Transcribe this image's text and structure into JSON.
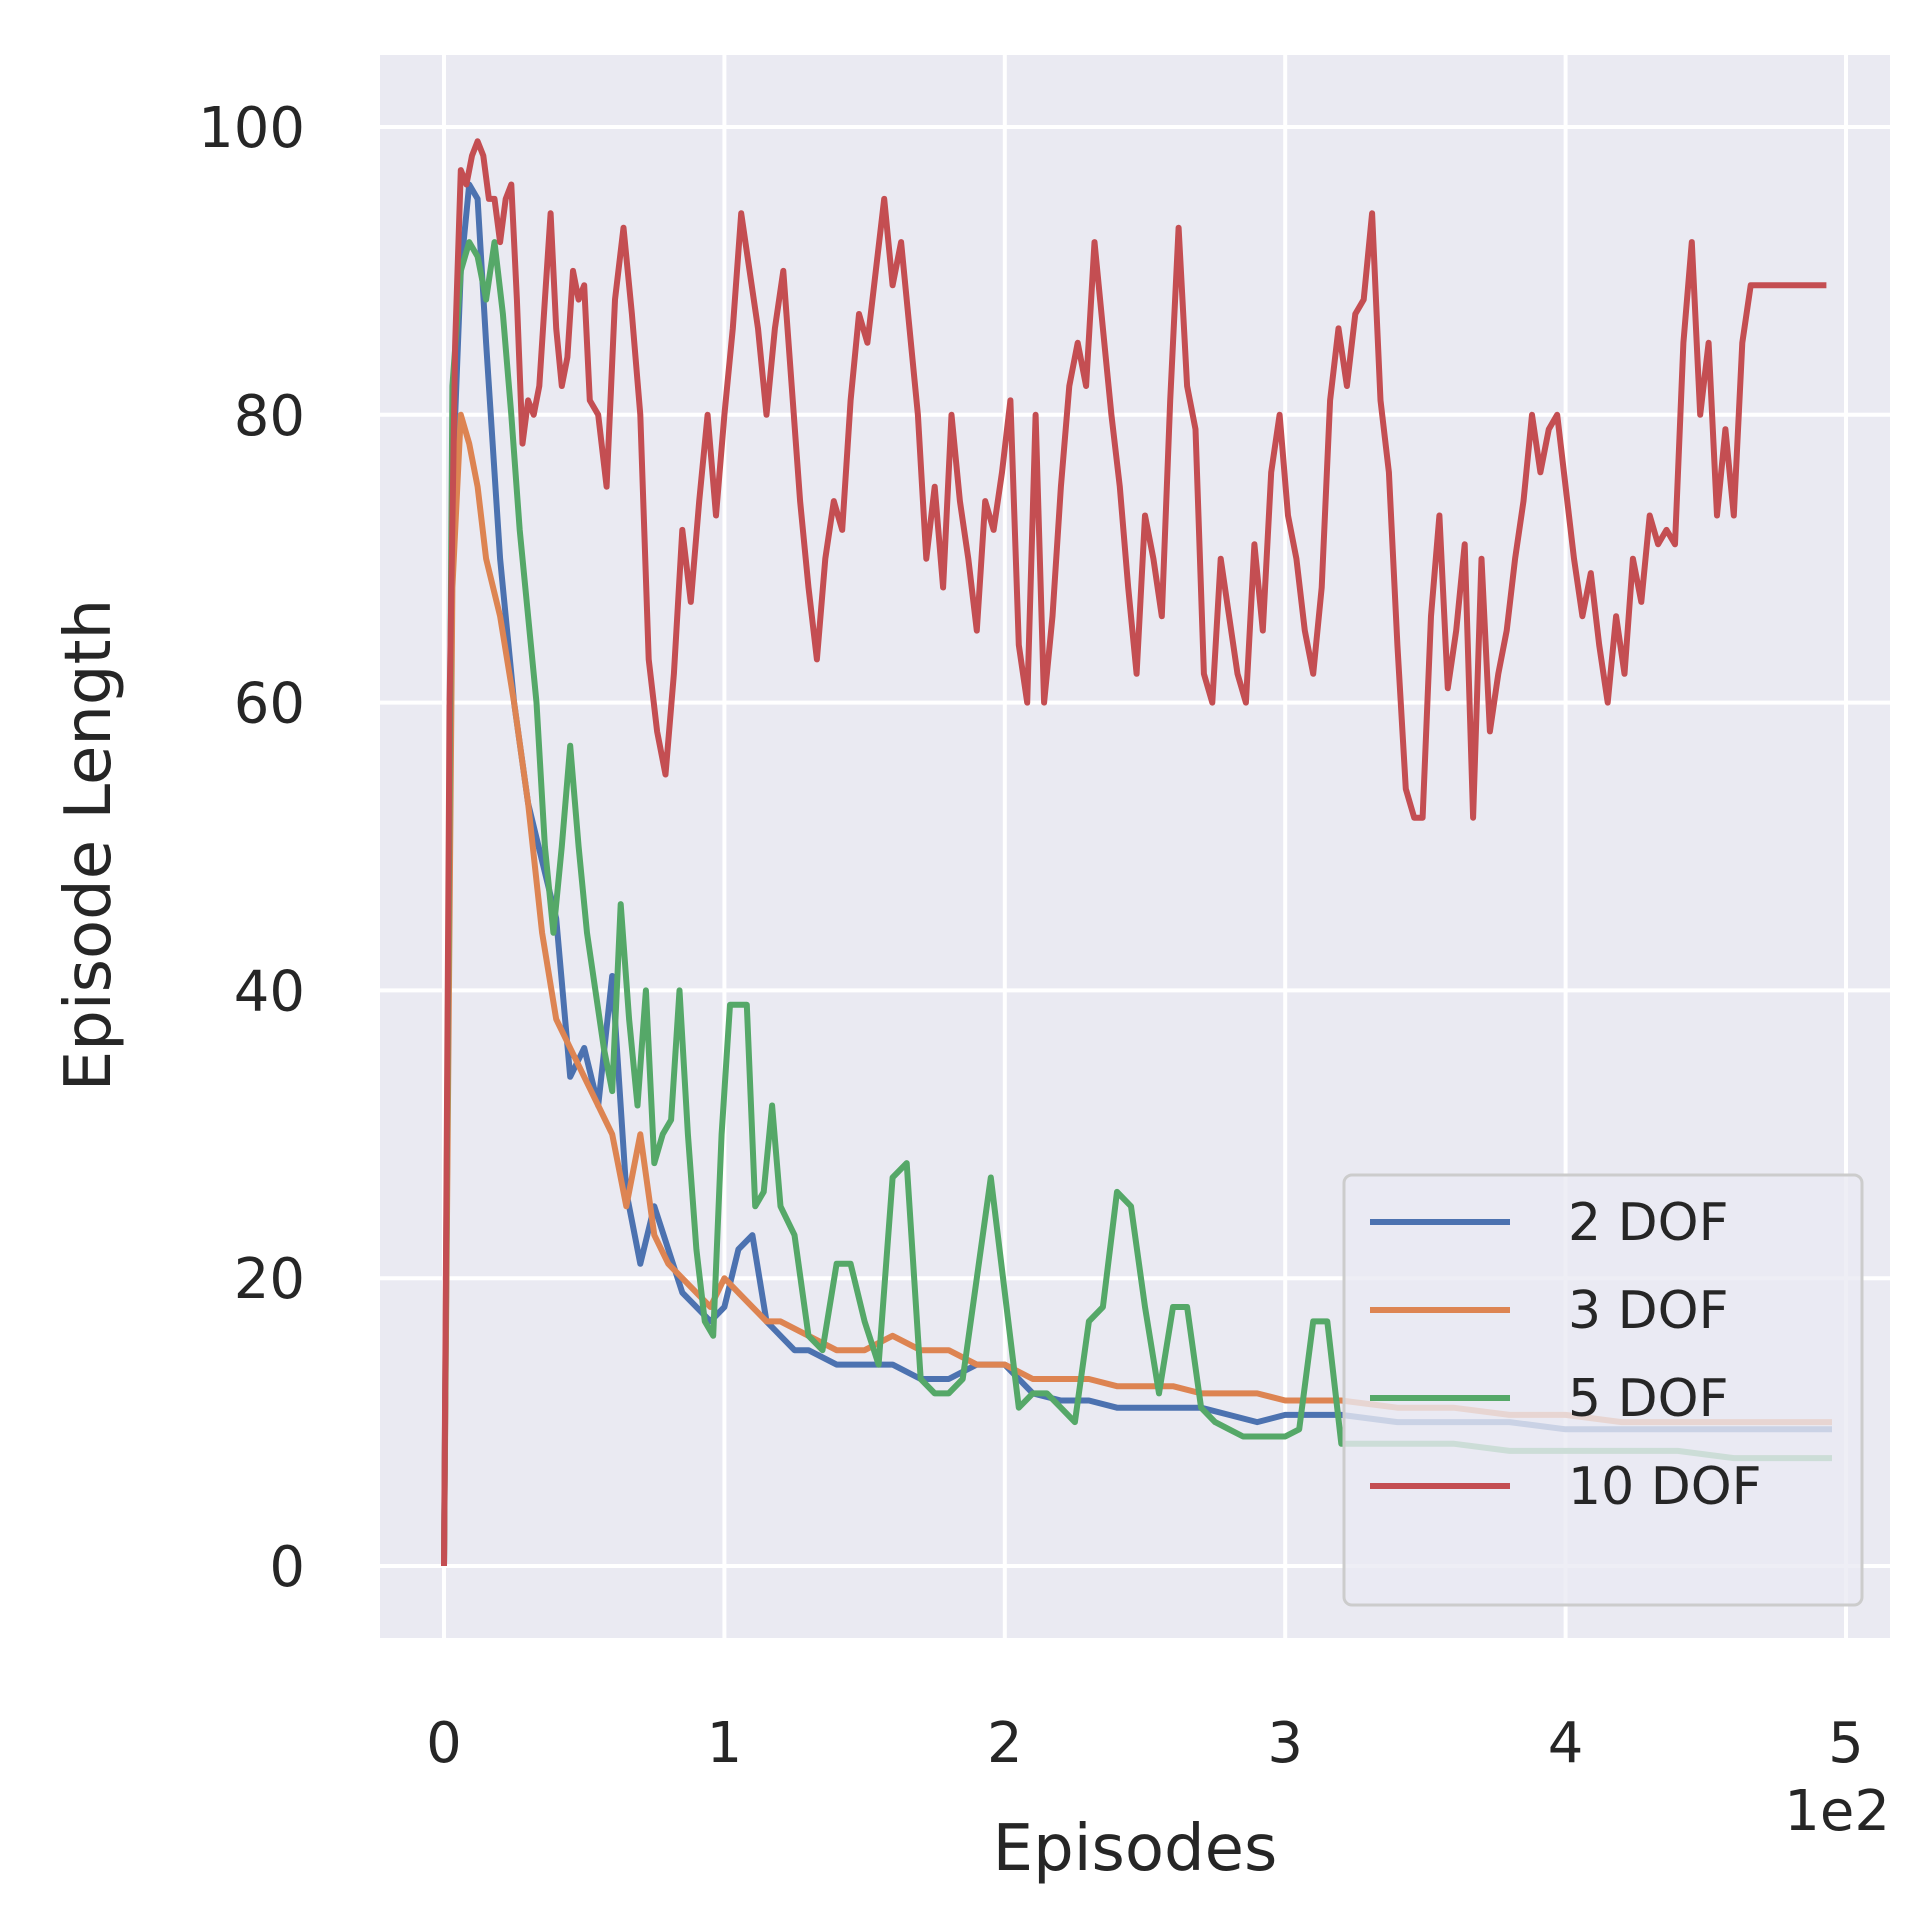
{
  "chart_data": {
    "type": "line",
    "xlabel": "Episodes",
    "ylabel": "Episode Length",
    "x_offset_label": "1e2",
    "xlim": [
      0,
      500
    ],
    "ylim": [
      -5,
      105
    ],
    "x_ticks": [
      0,
      100,
      200,
      300,
      400,
      500
    ],
    "x_tick_labels": [
      "0",
      "1",
      "2",
      "3",
      "4",
      "5"
    ],
    "y_ticks": [
      0,
      20,
      40,
      60,
      80,
      100
    ],
    "y_tick_labels": [
      "0",
      "20",
      "40",
      "60",
      "80",
      "100"
    ],
    "grid": true,
    "background": "#eaeaf2",
    "legend_position": "lower-right",
    "series": [
      {
        "name": "2 DOF",
        "color": "#4c72b0",
        "x": [
          0,
          3,
          6,
          9,
          12,
          15,
          20,
          25,
          30,
          35,
          40,
          45,
          50,
          55,
          60,
          65,
          70,
          75,
          80,
          85,
          90,
          95,
          100,
          105,
          110,
          115,
          120,
          125,
          130,
          140,
          150,
          160,
          170,
          180,
          190,
          200,
          210,
          220,
          230,
          240,
          250,
          260,
          270,
          280,
          290,
          300,
          320,
          340,
          360,
          380,
          400,
          420,
          440,
          460,
          480,
          495
        ],
        "y": [
          0,
          75,
          90,
          96,
          95,
          85,
          70,
          60,
          53,
          49,
          45,
          34,
          36,
          32,
          41,
          26,
          21,
          25,
          22,
          19,
          18,
          17,
          18,
          22,
          23,
          17,
          16,
          15,
          15,
          14,
          14,
          14,
          13,
          13,
          14,
          14,
          12,
          11.5,
          11.5,
          11,
          11,
          11,
          11,
          10.5,
          10,
          10.5,
          10.5,
          10,
          10,
          10,
          9.5,
          9.5,
          9.5,
          9.5,
          9.5,
          9.5
        ]
      },
      {
        "name": "3 DOF",
        "color": "#dd8452",
        "x": [
          0,
          3,
          6,
          9,
          12,
          15,
          20,
          25,
          30,
          35,
          40,
          45,
          50,
          55,
          60,
          65,
          70,
          75,
          80,
          85,
          90,
          95,
          100,
          105,
          110,
          115,
          120,
          130,
          140,
          150,
          160,
          170,
          180,
          190,
          200,
          210,
          220,
          230,
          240,
          250,
          260,
          270,
          280,
          290,
          300,
          320,
          340,
          360,
          380,
          400,
          420,
          440,
          460,
          480,
          495
        ],
        "y": [
          0,
          68,
          80,
          78,
          75,
          70,
          66,
          60,
          53,
          44,
          38,
          36,
          34,
          32,
          30,
          25,
          30,
          23,
          21,
          20,
          19,
          18,
          20,
          19,
          18,
          17,
          17,
          16,
          15,
          15,
          16,
          15,
          15,
          14,
          14,
          13,
          13,
          13,
          12.5,
          12.5,
          12.5,
          12,
          12,
          12,
          11.5,
          11.5,
          11,
          11,
          10.5,
          10.5,
          10,
          10,
          10,
          10,
          10
        ]
      },
      {
        "name": "5 DOF",
        "color": "#55a868",
        "x": [
          0,
          3,
          6,
          9,
          12,
          15,
          18,
          21,
          24,
          27,
          30,
          33,
          36,
          39,
          42,
          45,
          48,
          51,
          54,
          57,
          60,
          63,
          66,
          69,
          72,
          75,
          78,
          81,
          84,
          87,
          90,
          93,
          96,
          99,
          102,
          105,
          108,
          111,
          114,
          117,
          120,
          125,
          130,
          135,
          140,
          145,
          150,
          155,
          160,
          165,
          170,
          175,
          180,
          185,
          190,
          195,
          200,
          205,
          210,
          215,
          220,
          225,
          230,
          235,
          240,
          245,
          250,
          255,
          260,
          265,
          270,
          275,
          280,
          285,
          290,
          295,
          300,
          305,
          310,
          315,
          320,
          340,
          360,
          380,
          400,
          420,
          440,
          460,
          480,
          495
        ],
        "y": [
          0,
          82,
          90,
          92,
          91,
          88,
          92,
          87,
          80,
          72,
          66,
          60,
          50,
          44,
          50,
          57,
          50,
          44,
          40,
          36,
          33,
          46,
          38,
          32,
          40,
          28,
          30,
          31,
          40,
          30,
          22,
          17,
          16,
          30,
          39,
          39,
          39,
          25,
          26,
          32,
          25,
          23,
          16,
          15,
          21,
          21,
          17,
          14,
          27,
          28,
          13,
          12,
          12,
          13,
          20,
          27,
          19,
          11,
          12,
          12,
          11,
          10,
          17,
          18,
          26,
          25,
          18,
          12,
          18,
          18,
          11,
          10,
          9.5,
          9,
          9,
          9,
          9,
          9.5,
          17,
          17,
          8.5,
          8.5,
          8.5,
          8,
          8,
          8,
          8,
          7.5,
          7.5,
          7.5
        ]
      },
      {
        "name": "10 DOF",
        "color": "#c44e52",
        "x": [
          0,
          2,
          4,
          6,
          8,
          10,
          12,
          14,
          16,
          18,
          20,
          22,
          24,
          26,
          28,
          30,
          32,
          34,
          36,
          38,
          40,
          42,
          44,
          46,
          48,
          50,
          52,
          55,
          58,
          61,
          64,
          67,
          70,
          73,
          76,
          79,
          82,
          85,
          88,
          91,
          94,
          97,
          100,
          103,
          106,
          109,
          112,
          115,
          118,
          121,
          124,
          127,
          130,
          133,
          136,
          139,
          142,
          145,
          148,
          151,
          154,
          157,
          160,
          163,
          166,
          169,
          172,
          175,
          178,
          181,
          184,
          187,
          190,
          193,
          196,
          199,
          202,
          205,
          208,
          211,
          214,
          217,
          220,
          223,
          226,
          229,
          232,
          235,
          238,
          241,
          244,
          247,
          250,
          253,
          256,
          259,
          262,
          265,
          268,
          271,
          274,
          277,
          280,
          283,
          286,
          289,
          292,
          295,
          298,
          301,
          304,
          307,
          310,
          313,
          316,
          319,
          322,
          325,
          328,
          331,
          334,
          337,
          340,
          343,
          346,
          349,
          352,
          355,
          358,
          361,
          364,
          367,
          370,
          373,
          376,
          379,
          382,
          385,
          388,
          391,
          394,
          397,
          400,
          403,
          406,
          409,
          412,
          415,
          418,
          421,
          424,
          427,
          430,
          433,
          436,
          439,
          442,
          445,
          448,
          451,
          454,
          457,
          460,
          463,
          466,
          469,
          472,
          475,
          478,
          481,
          484,
          487,
          490,
          493
        ],
        "y": [
          0,
          60,
          85,
          97,
          96,
          98,
          99,
          98,
          95,
          95,
          92,
          95,
          96,
          88,
          78,
          81,
          80,
          82,
          88,
          94,
          86,
          82,
          84,
          90,
          88,
          89,
          81,
          80,
          75,
          88,
          93,
          87,
          80,
          63,
          58,
          55,
          62,
          72,
          67,
          74,
          80,
          73,
          80,
          86,
          94,
          90,
          86,
          80,
          86,
          90,
          82,
          74,
          68,
          63,
          70,
          74,
          72,
          81,
          87,
          85,
          90,
          95,
          89,
          92,
          86,
          80,
          70,
          75,
          68,
          80,
          74,
          70,
          65,
          74,
          72,
          76,
          81,
          64,
          60,
          80,
          60,
          66,
          75,
          82,
          85,
          82,
          92,
          86,
          80,
          75,
          68,
          62,
          73,
          70,
          66,
          81,
          93,
          82,
          79,
          62,
          60,
          70,
          66,
          62,
          60,
          71,
          65,
          76,
          80,
          73,
          70,
          65,
          62,
          68,
          81,
          86,
          82,
          87,
          88,
          94,
          81,
          76,
          64,
          54,
          52,
          52,
          66,
          73,
          61,
          65,
          71,
          52,
          70,
          58,
          62,
          65,
          70,
          74,
          80,
          76,
          79,
          80,
          75,
          70,
          66,
          69,
          64,
          60,
          66,
          62,
          70,
          67,
          73,
          71,
          72,
          71,
          85,
          92,
          80,
          85,
          73,
          79,
          73,
          85,
          89,
          89,
          89,
          89,
          89,
          89,
          89,
          89,
          89,
          89
        ]
      }
    ]
  }
}
